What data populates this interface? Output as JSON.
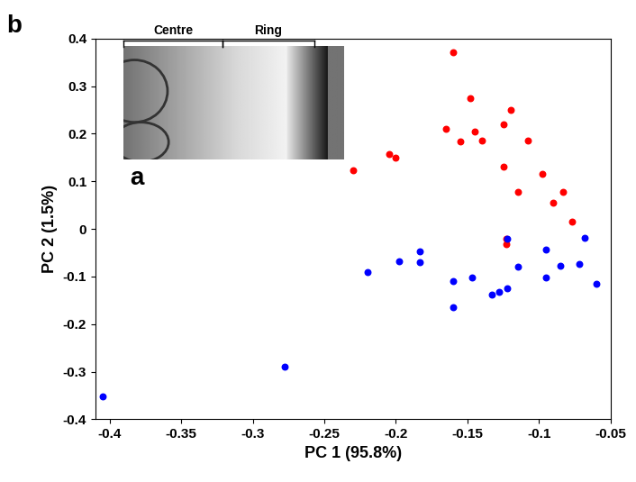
{
  "chart_data": {
    "type": "scatter",
    "x_label": "PC 1 (95.8%)",
    "y_label": "PC 2 (1.5%)",
    "panel_labels": [
      "b",
      "a"
    ],
    "inset_labels": [
      "Centre",
      "Ring"
    ],
    "xlim": [
      -0.41,
      -0.05
    ],
    "xticks": [
      -0.4,
      -0.35,
      -0.3,
      -0.25,
      -0.2,
      -0.15,
      -0.1,
      -0.05
    ],
    "ylim": [
      -0.4,
      0.4
    ],
    "yticks": [
      -0.4,
      -0.3,
      -0.2,
      -0.1,
      0,
      0.1,
      0.2,
      0.3,
      0.4
    ],
    "grid": false,
    "series": [
      {
        "color": "#ff0000",
        "marker": "o",
        "x": [
          -0.16,
          -0.148,
          -0.12,
          -0.125,
          -0.165,
          -0.145,
          -0.14,
          -0.155,
          -0.108,
          -0.205,
          -0.2,
          -0.125,
          -0.23,
          -0.098,
          -0.083,
          -0.115,
          -0.09,
          -0.077,
          -0.123,
          -0.123
        ],
        "values": [
          0.372,
          0.275,
          0.25,
          0.22,
          0.21,
          0.205,
          0.185,
          0.183,
          0.185,
          0.157,
          0.15,
          0.13,
          0.123,
          0.115,
          0.078,
          0.078,
          0.055,
          0.015,
          -0.02,
          -0.032
        ]
      },
      {
        "color": "#0000ff",
        "marker": "o",
        "x": [
          -0.405,
          -0.278,
          -0.22,
          -0.198,
          -0.183,
          -0.183,
          -0.16,
          -0.16,
          -0.147,
          -0.133,
          -0.128,
          -0.122,
          -0.122,
          -0.115,
          -0.095,
          -0.095,
          -0.085,
          -0.072,
          -0.068,
          -0.06
        ],
        "values": [
          -0.352,
          -0.29,
          -0.09,
          -0.068,
          -0.048,
          -0.07,
          -0.11,
          -0.165,
          -0.102,
          -0.137,
          -0.132,
          -0.125,
          -0.02,
          -0.08,
          -0.043,
          -0.102,
          -0.077,
          -0.073,
          -0.018,
          -0.115
        ]
      }
    ]
  }
}
